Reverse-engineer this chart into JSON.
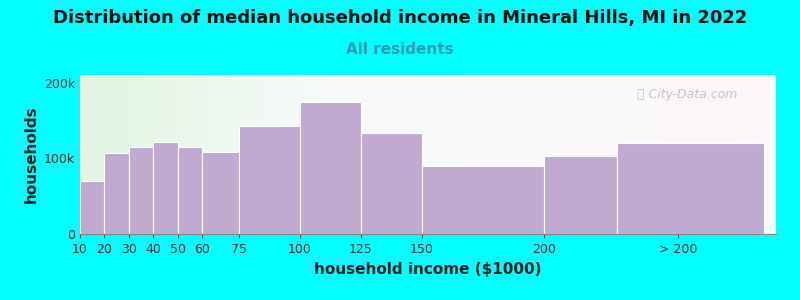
{
  "title": "Distribution of median household income in Mineral Hills, MI in 2022",
  "subtitle": "All residents",
  "xlabel": "household income ($1000)",
  "ylabel": "households",
  "background_outer": "#00FFFF",
  "bar_color": "#c0aad0",
  "bar_edge_color": "#ffffff",
  "values": [
    70000,
    107000,
    115000,
    122000,
    115000,
    108000,
    143000,
    175000,
    133000,
    90000,
    103000,
    120000
  ],
  "left_edges": [
    10,
    20,
    30,
    40,
    50,
    60,
    75,
    100,
    125,
    150,
    200,
    230
  ],
  "widths": [
    10,
    10,
    10,
    10,
    10,
    15,
    25,
    25,
    25,
    50,
    30,
    60
  ],
  "xtick_positions": [
    10,
    20,
    30,
    40,
    50,
    60,
    75,
    100,
    125,
    150,
    200,
    255
  ],
  "xtick_labels": [
    "10",
    "20",
    "30",
    "40",
    "50",
    "60",
    "75",
    "100",
    "125",
    "150",
    "200",
    "> 200"
  ],
  "ylim": [
    0,
    210000
  ],
  "yticks": [
    0,
    100000,
    200000
  ],
  "ytick_labels": [
    "0",
    "100k",
    "200k"
  ],
  "xlim": [
    10,
    295
  ],
  "title_fontsize": 13,
  "subtitle_fontsize": 11,
  "axis_label_fontsize": 11,
  "tick_fontsize": 9,
  "watermark_text": "City-Data.com"
}
